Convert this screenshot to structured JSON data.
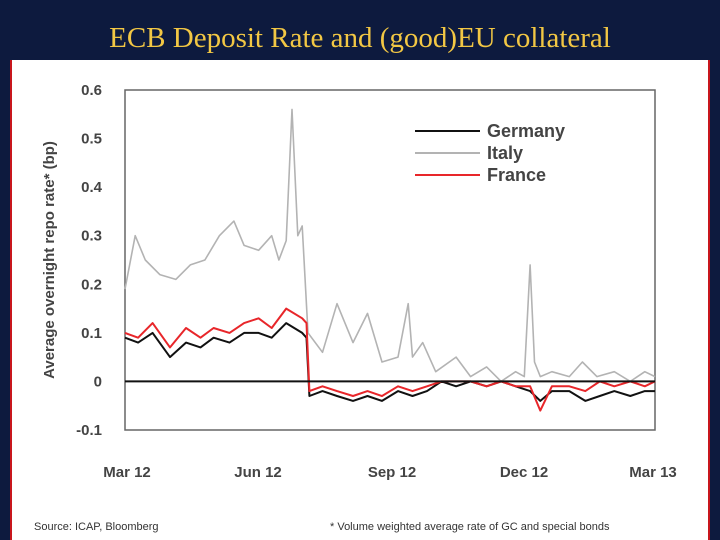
{
  "slide": {
    "title": "ECB Deposit Rate and (good)EU collateral"
  },
  "footer": {
    "source": "Source: ICAP, Bloomberg",
    "note": "* Volume weighted average rate of GC and special bonds"
  },
  "chart_data": {
    "type": "line",
    "title": "",
    "xlabel": "",
    "ylabel": "Average overnight repo rate* (bp)",
    "xlim": [
      "2012-03-01",
      "2013-03-01"
    ],
    "ylim": [
      -0.1,
      0.6
    ],
    "yticks": [
      "0.6",
      "0.5",
      "0.4",
      "0.3",
      "0.2",
      "0.1",
      "0",
      "-0.1"
    ],
    "xticks": [
      "Mar 12",
      "Jun 12",
      "Sep 12",
      "Dec 12",
      "Mar 13"
    ],
    "reference_line": 0,
    "legend": "top-right",
    "colors": {
      "Germany": "#111111",
      "Italy": "#b3b3b3",
      "France": "#e8262a"
    },
    "series": [
      {
        "name": "Germany",
        "x": [
          "2012-03-01",
          "2012-03-10",
          "2012-03-20",
          "2012-04-01",
          "2012-04-12",
          "2012-04-22",
          "2012-05-01",
          "2012-05-12",
          "2012-05-22",
          "2012-06-01",
          "2012-06-10",
          "2012-06-20",
          "2012-07-01",
          "2012-07-04",
          "2012-07-06",
          "2012-07-15",
          "2012-07-25",
          "2012-08-05",
          "2012-08-15",
          "2012-08-25",
          "2012-09-05",
          "2012-09-15",
          "2012-09-25",
          "2012-10-05",
          "2012-10-15",
          "2012-10-25",
          "2012-11-05",
          "2012-11-15",
          "2012-11-25",
          "2012-12-05",
          "2012-12-12",
          "2012-12-20",
          "2013-01-01",
          "2013-01-12",
          "2013-01-22",
          "2013-02-01",
          "2013-02-12",
          "2013-02-22",
          "2013-03-01"
        ],
        "values": [
          0.09,
          0.08,
          0.1,
          0.05,
          0.08,
          0.07,
          0.09,
          0.08,
          0.1,
          0.1,
          0.09,
          0.12,
          0.1,
          0.09,
          -0.03,
          -0.02,
          -0.03,
          -0.04,
          -0.03,
          -0.04,
          -0.02,
          -0.03,
          -0.02,
          0.0,
          -0.01,
          0.0,
          -0.01,
          0.0,
          -0.01,
          -0.02,
          -0.04,
          -0.02,
          -0.02,
          -0.04,
          -0.03,
          -0.02,
          -0.03,
          -0.02,
          -0.02
        ]
      },
      {
        "name": "Italy",
        "x": [
          "2012-03-01",
          "2012-03-08",
          "2012-03-15",
          "2012-03-25",
          "2012-04-05",
          "2012-04-15",
          "2012-04-25",
          "2012-05-05",
          "2012-05-15",
          "2012-05-22",
          "2012-06-01",
          "2012-06-10",
          "2012-06-15",
          "2012-06-20",
          "2012-06-24",
          "2012-06-28",
          "2012-07-01",
          "2012-07-05",
          "2012-07-15",
          "2012-07-25",
          "2012-08-05",
          "2012-08-15",
          "2012-08-25",
          "2012-09-05",
          "2012-09-12",
          "2012-09-15",
          "2012-09-22",
          "2012-10-01",
          "2012-10-15",
          "2012-10-25",
          "2012-11-05",
          "2012-11-15",
          "2012-11-25",
          "2012-12-01",
          "2012-12-05",
          "2012-12-08",
          "2012-12-12",
          "2012-12-20",
          "2013-01-01",
          "2013-01-10",
          "2013-01-20",
          "2013-02-01",
          "2013-02-12",
          "2013-02-22",
          "2013-03-01"
        ],
        "values": [
          0.19,
          0.3,
          0.25,
          0.22,
          0.21,
          0.24,
          0.25,
          0.3,
          0.33,
          0.28,
          0.27,
          0.3,
          0.25,
          0.29,
          0.56,
          0.3,
          0.32,
          0.1,
          0.06,
          0.16,
          0.08,
          0.14,
          0.04,
          0.05,
          0.16,
          0.05,
          0.08,
          0.02,
          0.05,
          0.01,
          0.03,
          0.0,
          0.02,
          0.01,
          0.24,
          0.04,
          0.01,
          0.02,
          0.01,
          0.04,
          0.01,
          0.02,
          0.0,
          0.02,
          0.01
        ]
      },
      {
        "name": "France",
        "x": [
          "2012-03-01",
          "2012-03-10",
          "2012-03-20",
          "2012-04-01",
          "2012-04-12",
          "2012-04-22",
          "2012-05-01",
          "2012-05-12",
          "2012-05-22",
          "2012-06-01",
          "2012-06-10",
          "2012-06-20",
          "2012-07-01",
          "2012-07-04",
          "2012-07-06",
          "2012-07-15",
          "2012-07-25",
          "2012-08-05",
          "2012-08-15",
          "2012-08-25",
          "2012-09-05",
          "2012-09-15",
          "2012-09-25",
          "2012-10-05",
          "2012-10-15",
          "2012-10-25",
          "2012-11-05",
          "2012-11-15",
          "2012-11-25",
          "2012-12-05",
          "2012-12-12",
          "2012-12-20",
          "2013-01-01",
          "2013-01-12",
          "2013-01-22",
          "2013-02-01",
          "2013-02-12",
          "2013-02-22",
          "2013-03-01"
        ],
        "values": [
          0.1,
          0.09,
          0.12,
          0.07,
          0.11,
          0.09,
          0.11,
          0.1,
          0.12,
          0.13,
          0.11,
          0.15,
          0.13,
          0.12,
          -0.02,
          -0.01,
          -0.02,
          -0.03,
          -0.02,
          -0.03,
          -0.01,
          -0.02,
          -0.01,
          0.0,
          0.0,
          0.0,
          -0.01,
          0.0,
          -0.01,
          -0.01,
          -0.06,
          -0.01,
          -0.01,
          -0.02,
          0.0,
          -0.01,
          0.0,
          -0.01,
          0.0
        ]
      }
    ]
  }
}
